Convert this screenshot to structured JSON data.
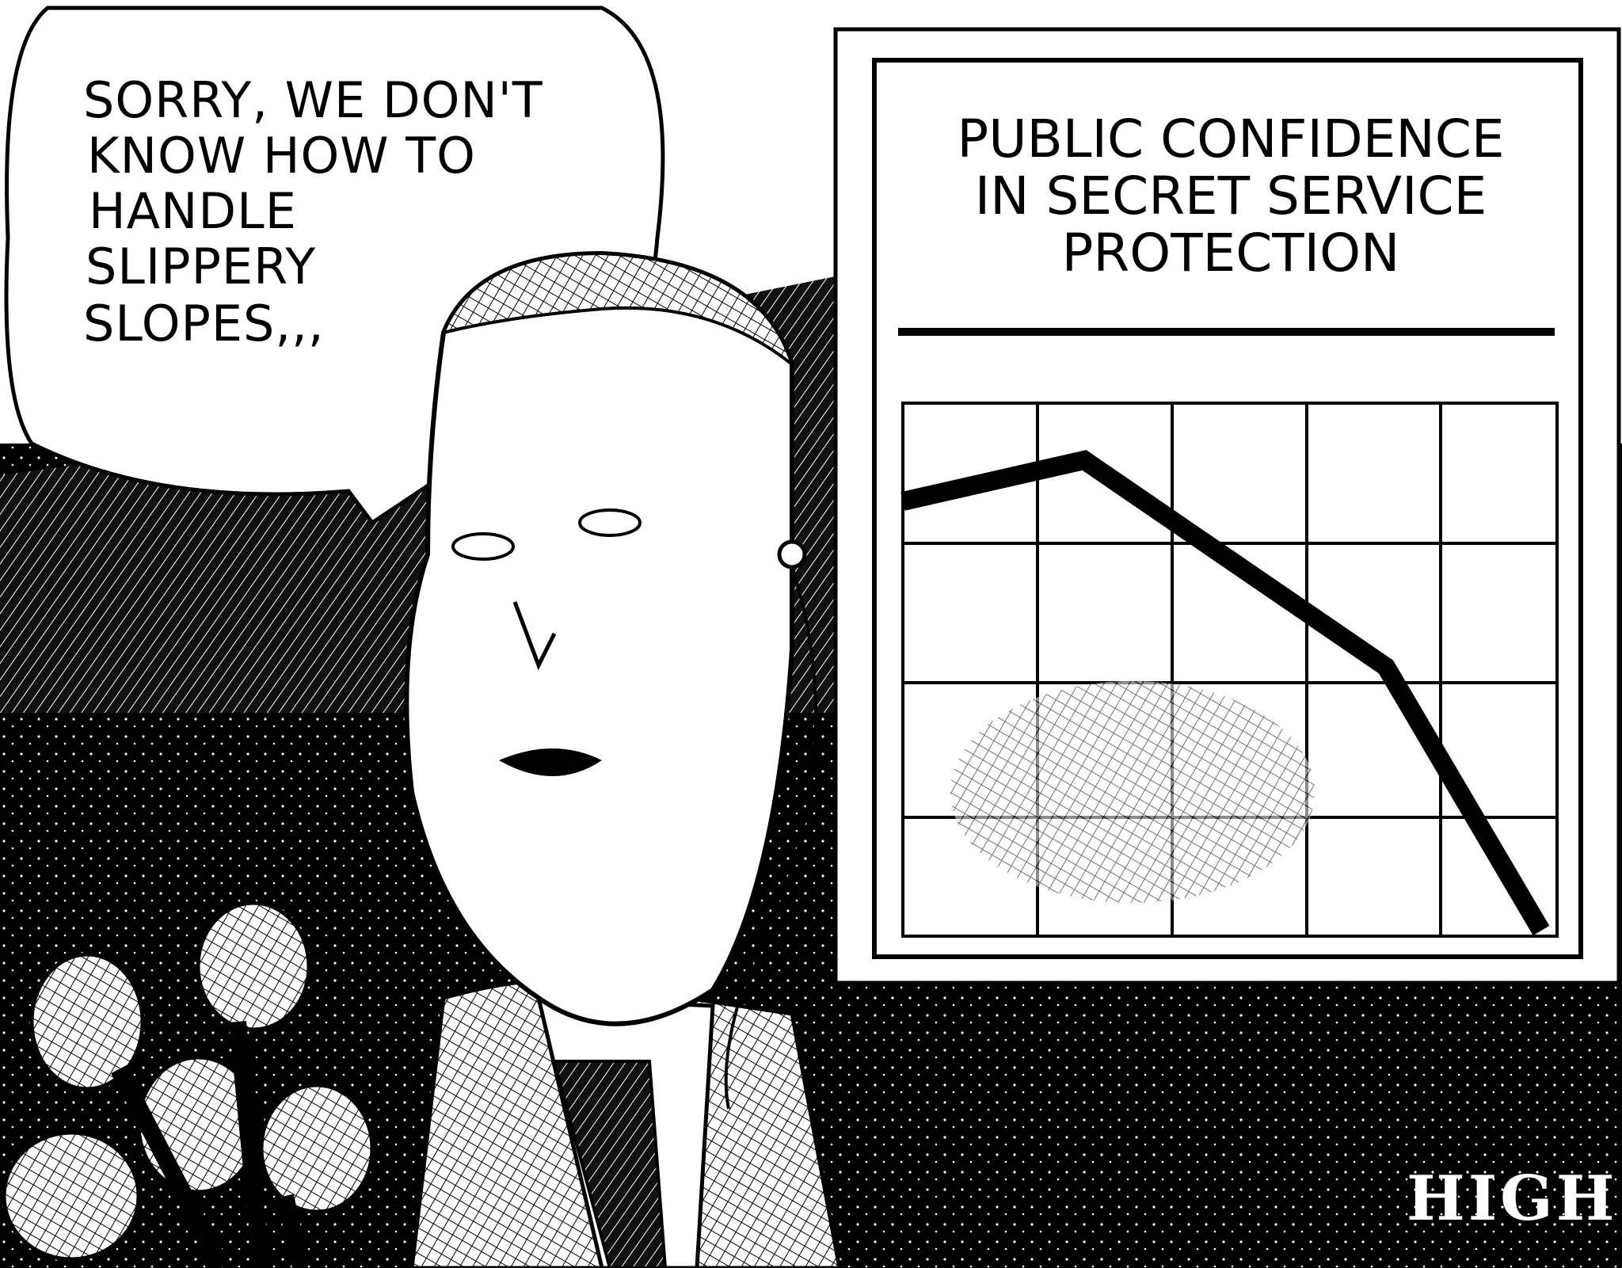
{
  "speech_bubble": {
    "lines": [
      "SORRY, WE DON'T",
      "KNOW HOW TO",
      "HANDLE",
      "SLIPPERY",
      "SLOPES,,,"
    ]
  },
  "board": {
    "title_lines": [
      "PUBLIC CONFIDENCE",
      "IN SECRET SERVICE",
      "PROTECTION"
    ]
  },
  "signature": "HIGH"
}
